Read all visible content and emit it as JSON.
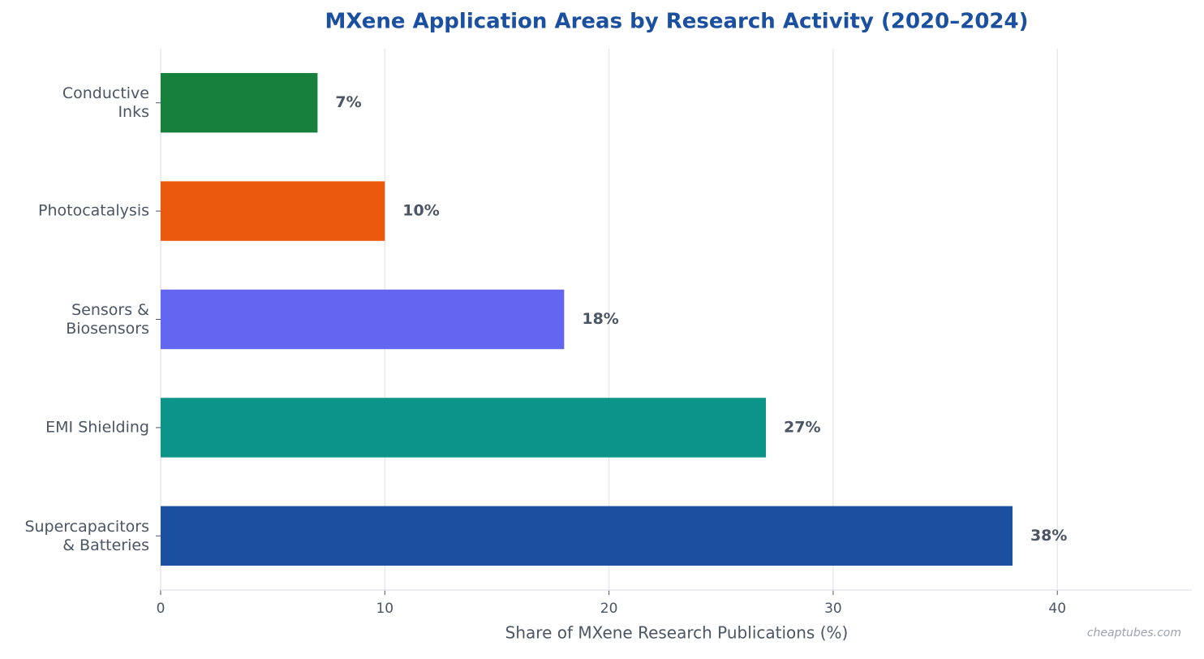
{
  "chart_data": {
    "type": "barh",
    "title": "MXene Application Areas by Research Activity (2020–2024)",
    "x_label": "Share of MXene Research Publications (%)",
    "watermark": "cheaptubes.com",
    "categories": [
      "Conductive\nInks",
      "Photocatalysis",
      "Sensors &\nBiosensors",
      "EMI Shielding",
      "Supercapacitors\n& Batteries"
    ],
    "values": [
      7,
      10,
      18,
      27,
      38
    ],
    "value_labels": [
      "7%",
      "10%",
      "18%",
      "27%",
      "38%"
    ],
    "colors": [
      "#16803c",
      "#ea580c",
      "#6366f1",
      "#0d9488",
      "#1b4fa0"
    ],
    "xlim": [
      0,
      46
    ],
    "xticks": [
      0,
      10,
      20,
      30,
      40
    ],
    "grid": true
  }
}
